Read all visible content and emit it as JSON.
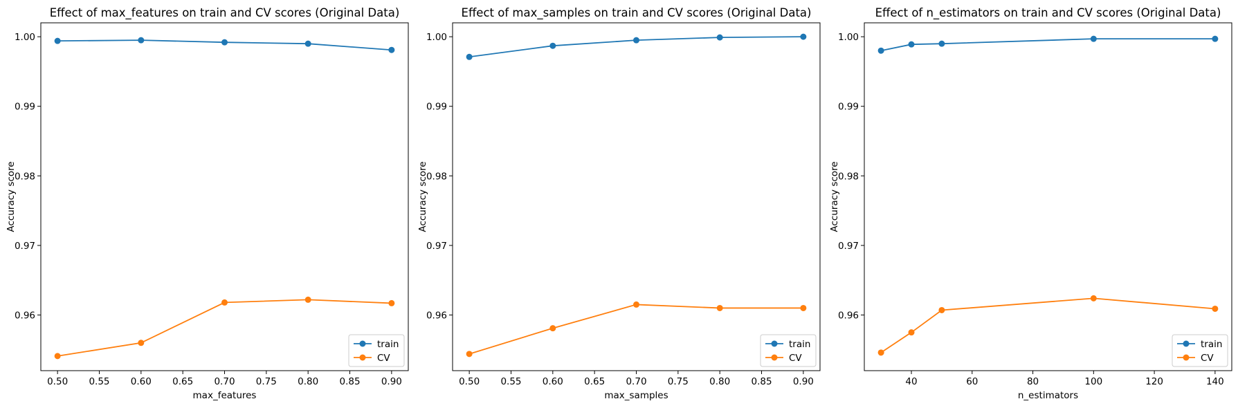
{
  "colors": {
    "train": "#1f77b4",
    "cv": "#ff7f0e"
  },
  "chart_data": [
    {
      "type": "line",
      "title": "Effect of max_features on train and CV scores (Original Data)",
      "xlabel": "max_features",
      "ylabel": "Accuracy score",
      "xlim": [
        0.48,
        0.92
      ],
      "ylim": [
        0.952,
        1.002
      ],
      "xticks": [
        0.5,
        0.55,
        0.6,
        0.65,
        0.7,
        0.75,
        0.8,
        0.85,
        0.9
      ],
      "xtick_labels": [
        "0.50",
        "0.55",
        "0.60",
        "0.65",
        "0.70",
        "0.75",
        "0.80",
        "0.85",
        "0.90"
      ],
      "yticks": [
        0.96,
        0.97,
        0.98,
        0.99,
        1.0
      ],
      "ytick_labels": [
        "0.96",
        "0.97",
        "0.98",
        "0.99",
        "1.00"
      ],
      "grid": false,
      "legend_position": "bottom-right",
      "x": [
        0.5,
        0.6,
        0.7,
        0.8,
        0.9
      ],
      "series": [
        {
          "name": "train",
          "values": [
            0.9994,
            0.9995,
            0.9992,
            0.999,
            0.9981
          ]
        },
        {
          "name": "CV",
          "values": [
            0.9541,
            0.956,
            0.9618,
            0.9622,
            0.9617
          ]
        }
      ]
    },
    {
      "type": "line",
      "title": "Effect of max_samples on train and CV scores (Original Data)",
      "xlabel": "max_samples",
      "ylabel": "Accuracy score",
      "xlim": [
        0.48,
        0.92
      ],
      "ylim": [
        0.952,
        1.002
      ],
      "xticks": [
        0.5,
        0.55,
        0.6,
        0.65,
        0.7,
        0.75,
        0.8,
        0.85,
        0.9
      ],
      "xtick_labels": [
        "0.50",
        "0.55",
        "0.60",
        "0.65",
        "0.70",
        "0.75",
        "0.80",
        "0.85",
        "0.90"
      ],
      "yticks": [
        0.96,
        0.97,
        0.98,
        0.99,
        1.0
      ],
      "ytick_labels": [
        "0.96",
        "0.97",
        "0.98",
        "0.99",
        "1.00"
      ],
      "grid": false,
      "legend_position": "bottom-right",
      "x": [
        0.5,
        0.6,
        0.7,
        0.8,
        0.9
      ],
      "series": [
        {
          "name": "train",
          "values": [
            0.9971,
            0.9987,
            0.9995,
            0.9999,
            1.0
          ]
        },
        {
          "name": "CV",
          "values": [
            0.9544,
            0.9581,
            0.9615,
            0.961,
            0.961
          ]
        }
      ]
    },
    {
      "type": "line",
      "title": "Effect of n_estimators on train and CV scores (Original Data)",
      "xlabel": "n_estimators",
      "ylabel": "Accuracy score",
      "xlim": [
        24.5,
        145.5
      ],
      "ylim": [
        0.952,
        1.002
      ],
      "xticks": [
        40,
        60,
        80,
        100,
        120,
        140
      ],
      "xtick_labels": [
        "40",
        "60",
        "80",
        "100",
        "120",
        "140"
      ],
      "yticks": [
        0.96,
        0.97,
        0.98,
        0.99,
        1.0
      ],
      "ytick_labels": [
        "0.96",
        "0.97",
        "0.98",
        "0.99",
        "1.00"
      ],
      "grid": false,
      "legend_position": "bottom-right",
      "x": [
        30,
        40,
        50,
        100,
        140
      ],
      "series": [
        {
          "name": "train",
          "values": [
            0.998,
            0.9989,
            0.999,
            0.9997,
            0.9997
          ]
        },
        {
          "name": "CV",
          "values": [
            0.9546,
            0.9575,
            0.9607,
            0.9624,
            0.9609
          ]
        }
      ]
    }
  ]
}
